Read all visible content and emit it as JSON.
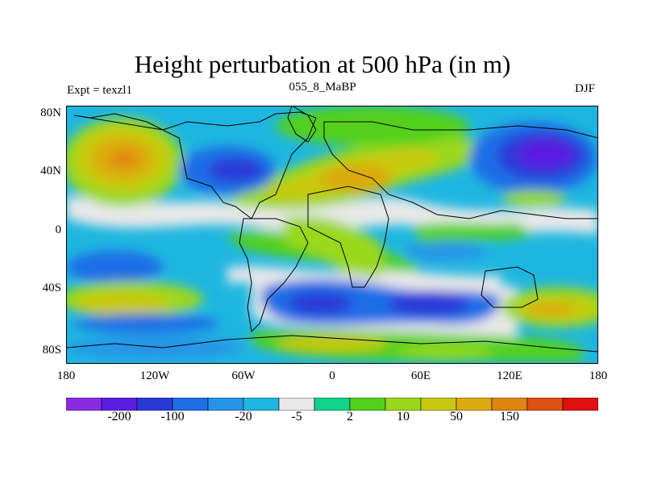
{
  "title": "Height perturbation at 500 hPa (in m)",
  "left_string": "Expt = texzl1",
  "center_string": "055_8_MaBP",
  "right_string": "DJF",
  "lat_labels": [
    "80N",
    "40N",
    "0",
    "40S",
    "80S"
  ],
  "lon_labels": [
    "180",
    "120W",
    "60W",
    "0",
    "60E",
    "120E",
    "180"
  ],
  "colorbar": {
    "labels": [
      "-200",
      "-100",
      "-20",
      "-5",
      "2",
      "10",
      "50",
      "150"
    ],
    "colors": [
      "#8a2be2",
      "#5a1ee0",
      "#2a3ad8",
      "#1e6ee6",
      "#2894e8",
      "#1eb6e0",
      "#e8e8e8",
      "#10d28a",
      "#52d01a",
      "#9ad81a",
      "#c8c810",
      "#dcaa10",
      "#e08410",
      "#e05010",
      "#e01010"
    ]
  }
}
